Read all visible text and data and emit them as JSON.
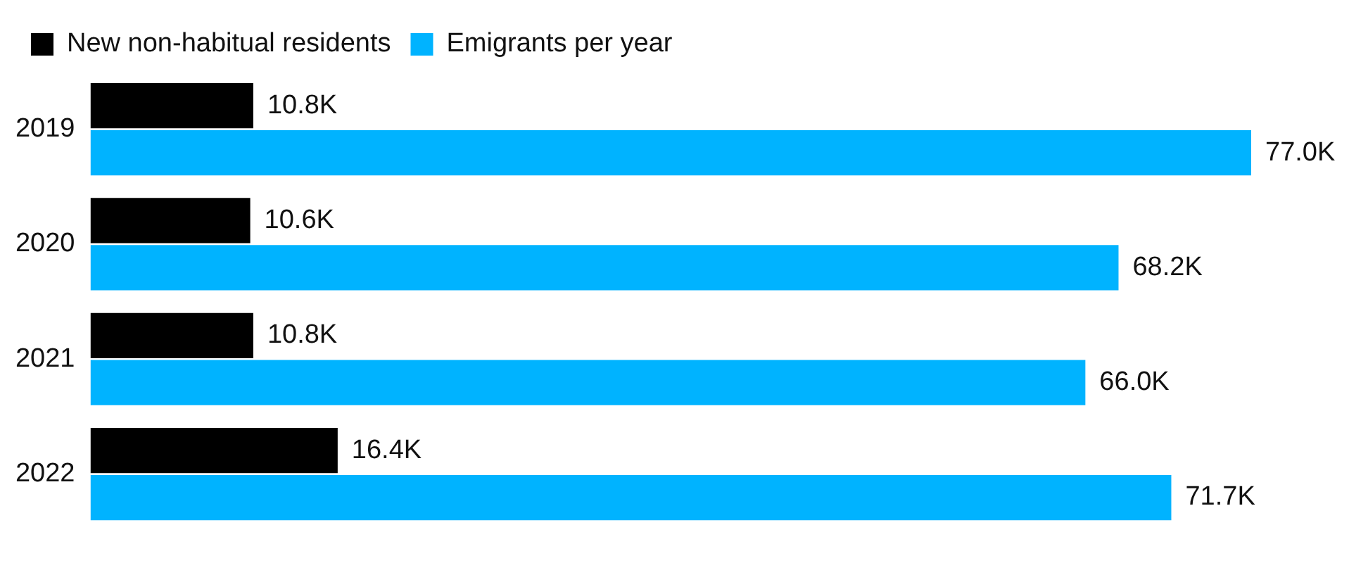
{
  "chart_data": {
    "type": "bar",
    "orientation": "horizontal",
    "categories": [
      "2019",
      "2020",
      "2021",
      "2022"
    ],
    "legend": "top left",
    "grid": false,
    "series": [
      {
        "name": "New non-habitual residents",
        "color": "#000000",
        "values": [
          10.8,
          10.6,
          10.8,
          16.4
        ],
        "value_labels": [
          "10.8K",
          "10.6K",
          "10.8K",
          "16.4K"
        ]
      },
      {
        "name": "Emigrants per year",
        "color": "#00b3ff",
        "values": [
          77.0,
          68.2,
          66.0,
          71.7
        ],
        "value_labels": [
          "77.0K",
          "68.2K",
          "66.0K",
          "71.7K"
        ]
      }
    ]
  }
}
